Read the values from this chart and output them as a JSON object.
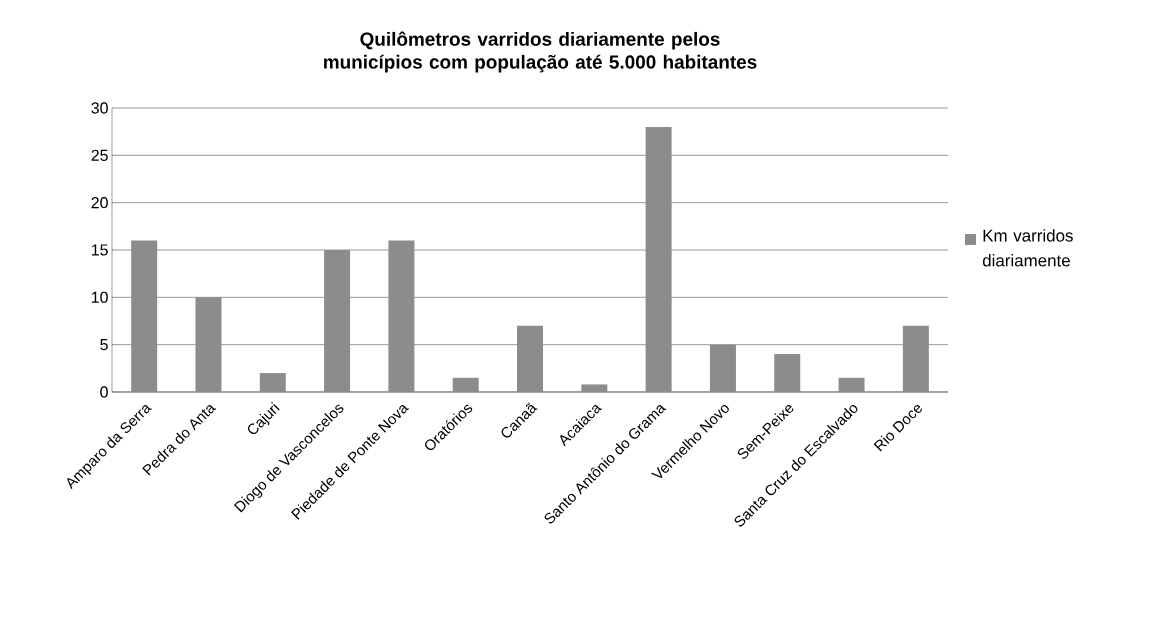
{
  "chart_data": {
    "type": "bar",
    "title": "Quilômetros varridos diariamente pelos municípios com população até 5.000 habitantes",
    "categories": [
      "Amparo da Serra",
      "Pedra do Anta",
      "Cajuri",
      "Diogo de Vasconcelos",
      "Piedade de Ponte Nova",
      "Oratórios",
      "Canaã",
      "Acaiaca",
      "Santo Antônio do Grama",
      "Vermelho Novo",
      "Sem-Peixe",
      "Santa Cruz do Escalvado",
      "Rio Doce"
    ],
    "series": [
      {
        "name": "Km varridos diariamente",
        "color": "#8c8c8c",
        "values": [
          16,
          10,
          2,
          15,
          16,
          1.5,
          7,
          0.8,
          28,
          5,
          4,
          1.5,
          7
        ]
      }
    ],
    "ylim": [
      0,
      30
    ],
    "yticks": [
      0,
      5,
      10,
      15,
      20,
      25,
      30
    ],
    "grid": "y",
    "legend": "right"
  }
}
